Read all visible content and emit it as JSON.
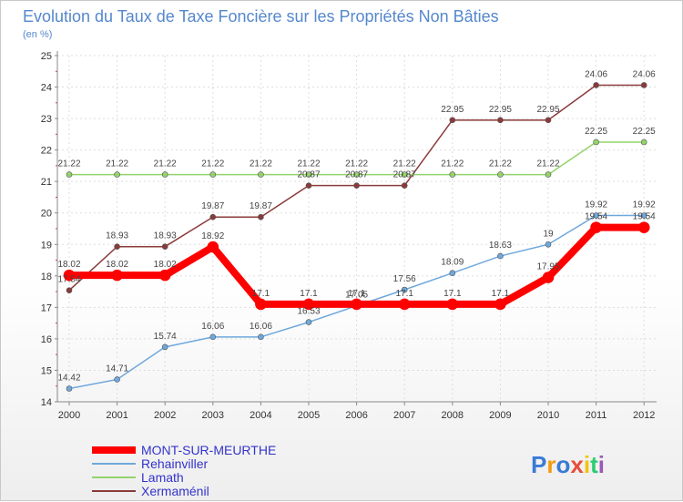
{
  "chart_data": {
    "type": "line",
    "title": "Evolution du Taux de Taxe Foncière sur les Propriétés Non Bâties",
    "subtitle": "(en %)",
    "x": [
      "2000",
      "2001",
      "2002",
      "2003",
      "2004",
      "2005",
      "2006",
      "2007",
      "2008",
      "2009",
      "2010",
      "2011",
      "2012"
    ],
    "ylim": [
      14,
      25
    ],
    "yticks": [
      "14",
      "15",
      "16",
      "17",
      "18",
      "19",
      "20",
      "21",
      "22",
      "23",
      "24",
      "25"
    ],
    "grid": true,
    "series": [
      {
        "name": "MONT-SUR-MEURTHE",
        "color": "#ff0000",
        "width": 8,
        "values": [
          18.02,
          18.02,
          18.02,
          18.92,
          17.1,
          17.1,
          17.1,
          17.1,
          17.1,
          17.1,
          17.95,
          19.54,
          19.54
        ],
        "labels": [
          "18.02",
          "18.02",
          "18.02",
          "18.92",
          "17.1",
          "17.1",
          "17.1",
          "17.1",
          "17.1",
          "17.1",
          "17.95",
          "19.54",
          "19.54"
        ]
      },
      {
        "name": "Rehainviller",
        "color": "#6fa8dc",
        "width": 1.5,
        "values": [
          14.42,
          14.71,
          15.74,
          16.06,
          16.06,
          16.53,
          17.05,
          17.56,
          18.09,
          18.63,
          19,
          19.92,
          19.92
        ],
        "labels": [
          "14.42",
          "14.71",
          "15.74",
          "16.06",
          "16.06",
          "16.53",
          "17.05",
          "17.56",
          "18.09",
          "18.63",
          "19",
          "19.92",
          "19.92"
        ]
      },
      {
        "name": "Lamath",
        "color": "#93d36b",
        "width": 1.5,
        "values": [
          21.22,
          21.22,
          21.22,
          21.22,
          21.22,
          21.22,
          21.22,
          21.22,
          21.22,
          21.22,
          21.22,
          22.25,
          22.25
        ],
        "labels": [
          "21.22",
          "21.22",
          "21.22",
          "21.22",
          "21.22",
          "21.22",
          "21.22",
          "21.22",
          "21.22",
          "21.22",
          "21.22",
          "22.25",
          "22.25"
        ]
      },
      {
        "name": "Xermaménil",
        "color": "#8b3a3a",
        "width": 1.5,
        "values": [
          17.54,
          18.93,
          18.93,
          19.87,
          19.87,
          20.87,
          20.87,
          20.87,
          22.95,
          22.95,
          22.95,
          24.06,
          24.06
        ],
        "labels": [
          "17.54",
          "18.93",
          "18.93",
          "19.87",
          "19.87",
          "20.87",
          "20.87",
          "20.87",
          "22.95",
          "22.95",
          "22.95",
          "24.06",
          "24.06"
        ]
      }
    ],
    "legend": {
      "position": "bottom-left",
      "entries": [
        "MONT-SUR-MEURTHE",
        "Rehainviller",
        "Lamath",
        "Xermaménil"
      ],
      "text_color": "#3333cc"
    }
  },
  "branding": {
    "logo_text": "Proxiti",
    "colors": [
      "#3a7bd5",
      "#f39c12",
      "#3a7bd5",
      "#e74c3c",
      "#f1c40f",
      "#2ecc71",
      "#9b59b6"
    ]
  }
}
